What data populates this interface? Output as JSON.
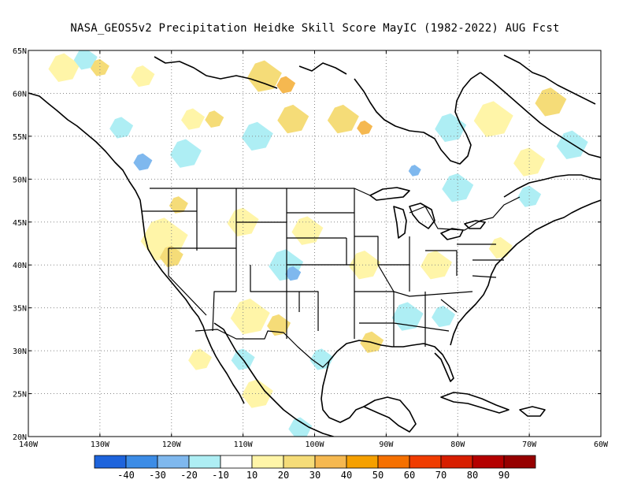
{
  "title": "NASA_GEOS5v2  Precipitation Heidke Skill Score MayIC (1982-2022) AUG Fcst",
  "map": {
    "lon_range": [
      -140,
      -60
    ],
    "lat_range": [
      20,
      65
    ],
    "lat_ticks": [
      {
        "value": 65,
        "label": "65N"
      },
      {
        "value": 60,
        "label": "60N"
      },
      {
        "value": 55,
        "label": "55N"
      },
      {
        "value": 50,
        "label": "50N"
      },
      {
        "value": 45,
        "label": "45N"
      },
      {
        "value": 40,
        "label": "40N"
      },
      {
        "value": 35,
        "label": "35N"
      },
      {
        "value": 30,
        "label": "30N"
      },
      {
        "value": 25,
        "label": "25N"
      },
      {
        "value": 20,
        "label": "20N"
      }
    ],
    "lon_ticks": [
      {
        "value": -140,
        "label": "140W"
      },
      {
        "value": -130,
        "label": "130W"
      },
      {
        "value": -120,
        "label": "120W"
      },
      {
        "value": -110,
        "label": "110W"
      },
      {
        "value": -100,
        "label": "100W"
      },
      {
        "value": -90,
        "label": "90W"
      },
      {
        "value": -80,
        "label": "80W"
      },
      {
        "value": -70,
        "label": "70W"
      },
      {
        "value": -60,
        "label": "60W"
      }
    ],
    "grid": true,
    "fill_patches": [
      {
        "lon": -135,
        "lat": 63,
        "color": "#fff5a8",
        "r": 2
      },
      {
        "lon": -132,
        "lat": 64,
        "color": "#aeeef4",
        "r": 1.5
      },
      {
        "lon": -130,
        "lat": 63,
        "color": "#f5dc78",
        "r": 1.2
      },
      {
        "lon": -124,
        "lat": 62,
        "color": "#fff5a8",
        "r": 1.5
      },
      {
        "lon": -117,
        "lat": 57,
        "color": "#fff5a8",
        "r": 1.5
      },
      {
        "lon": -114,
        "lat": 57,
        "color": "#f5dc78",
        "r": 1.2
      },
      {
        "lon": -107,
        "lat": 62,
        "color": "#f5dc78",
        "r": 2.2
      },
      {
        "lon": -104,
        "lat": 61,
        "color": "#f5b850",
        "r": 1.2
      },
      {
        "lon": -103,
        "lat": 57,
        "color": "#f5dc78",
        "r": 2
      },
      {
        "lon": -96,
        "lat": 57,
        "color": "#f5dc78",
        "r": 2
      },
      {
        "lon": -93,
        "lat": 56,
        "color": "#f5b850",
        "r": 1
      },
      {
        "lon": -108,
        "lat": 55,
        "color": "#aeeef4",
        "r": 2
      },
      {
        "lon": -118,
        "lat": 53,
        "color": "#aeeef4",
        "r": 2
      },
      {
        "lon": -124,
        "lat": 52,
        "color": "#7fb8ee",
        "r": 1.2
      },
      {
        "lon": -127,
        "lat": 56,
        "color": "#aeeef4",
        "r": 1.5
      },
      {
        "lon": -81,
        "lat": 56,
        "color": "#aeeef4",
        "r": 2
      },
      {
        "lon": -75,
        "lat": 57,
        "color": "#fff5a8",
        "r": 2.5
      },
      {
        "lon": -67,
        "lat": 59,
        "color": "#f5dc78",
        "r": 2
      },
      {
        "lon": -70,
        "lat": 52,
        "color": "#fff5a8",
        "r": 2
      },
      {
        "lon": -64,
        "lat": 54,
        "color": "#aeeef4",
        "r": 2
      },
      {
        "lon": -80,
        "lat": 49,
        "color": "#aeeef4",
        "r": 2
      },
      {
        "lon": -86,
        "lat": 51,
        "color": "#7fb8ee",
        "r": 0.8
      },
      {
        "lon": -70,
        "lat": 48,
        "color": "#aeeef4",
        "r": 1.5
      },
      {
        "lon": -121,
        "lat": 43,
        "color": "#fff5a8",
        "r": 3
      },
      {
        "lon": -119,
        "lat": 47,
        "color": "#f5dc78",
        "r": 1.2
      },
      {
        "lon": -120,
        "lat": 41,
        "color": "#f5dc78",
        "r": 1.5
      },
      {
        "lon": -110,
        "lat": 45,
        "color": "#fff5a8",
        "r": 2
      },
      {
        "lon": -101,
        "lat": 44,
        "color": "#fff5a8",
        "r": 2
      },
      {
        "lon": -104,
        "lat": 40,
        "color": "#aeeef4",
        "r": 2.2
      },
      {
        "lon": -103,
        "lat": 39,
        "color": "#7fb8ee",
        "r": 1
      },
      {
        "lon": -109,
        "lat": 34,
        "color": "#fff5a8",
        "r": 2.5
      },
      {
        "lon": -105,
        "lat": 33,
        "color": "#f5dc78",
        "r": 1.5
      },
      {
        "lon": -93,
        "lat": 40,
        "color": "#fff5a8",
        "r": 2
      },
      {
        "lon": -83,
        "lat": 40,
        "color": "#fff5a8",
        "r": 2
      },
      {
        "lon": -87,
        "lat": 34,
        "color": "#aeeef4",
        "r": 2
      },
      {
        "lon": -82,
        "lat": 34,
        "color": "#aeeef4",
        "r": 1.5
      },
      {
        "lon": -92,
        "lat": 31,
        "color": "#f5dc78",
        "r": 1.5
      },
      {
        "lon": -99,
        "lat": 29,
        "color": "#aeeef4",
        "r": 1.5
      },
      {
        "lon": -108,
        "lat": 25,
        "color": "#fff5a8",
        "r": 2
      },
      {
        "lon": -102,
        "lat": 21,
        "color": "#aeeef4",
        "r": 1.5
      },
      {
        "lon": -110,
        "lat": 29,
        "color": "#aeeef4",
        "r": 1.5
      },
      {
        "lon": -116,
        "lat": 29,
        "color": "#fff5a8",
        "r": 1.5
      },
      {
        "lon": -74,
        "lat": 42,
        "color": "#fff5a8",
        "r": 1.5
      }
    ]
  },
  "colorbar": {
    "colors": [
      "#1e64dc",
      "#3c8ce6",
      "#7fb8ee",
      "#aeeef4",
      "#ffffff",
      "#fff5a8",
      "#f5dc78",
      "#f5b850",
      "#f5a000",
      "#f57000",
      "#f03c00",
      "#d71e00",
      "#b40000",
      "#960000"
    ],
    "labels": [
      "-40",
      "-30",
      "-20",
      "-10",
      "10",
      "20",
      "30",
      "40",
      "50",
      "60",
      "70",
      "80",
      "90"
    ]
  }
}
